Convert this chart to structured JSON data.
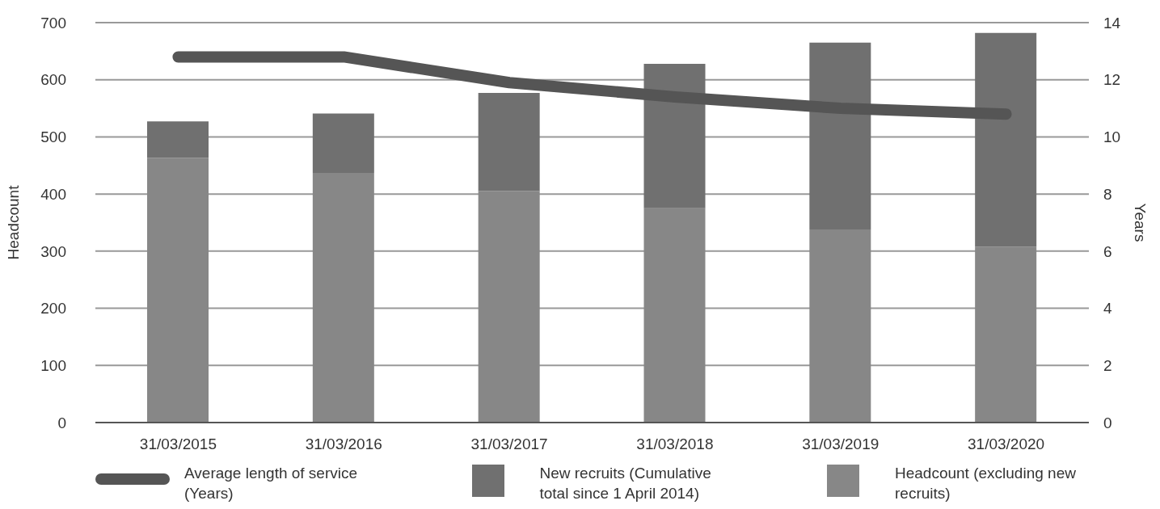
{
  "chart_data": {
    "type": "bar",
    "stacked": true,
    "xlabel": null,
    "ylabel": "Headcount",
    "y2label": "Years",
    "categories": [
      "31/03/2015",
      "31/03/2016",
      "31/03/2017",
      "31/03/2018",
      "31/03/2019",
      "31/03/2020"
    ],
    "series": [
      {
        "name": "Headcount (excluding new recruits)",
        "color": "#878787",
        "values": [
          463,
          437,
          405,
          375,
          338,
          308
        ]
      },
      {
        "name": "New recruits (Cumulative total since 1 April 2014)",
        "color": "#707070",
        "values": [
          64,
          104,
          172,
          253,
          327,
          374
        ]
      },
      {
        "name": "Average length of service (Years)",
        "type": "line",
        "axis": "y2",
        "color": "#555555",
        "values": [
          12.8,
          12.8,
          11.9,
          11.4,
          11.0,
          10.8
        ]
      }
    ],
    "ylim": [
      0,
      700
    ],
    "yticks": [
      0,
      100,
      200,
      300,
      400,
      500,
      600,
      700
    ],
    "y2lim": [
      0,
      14
    ],
    "y2ticks": [
      0,
      2,
      4,
      6,
      8,
      10,
      12,
      14
    ],
    "grid": "y",
    "legend": "bottom",
    "marker": "none",
    "line_style": "solid"
  }
}
